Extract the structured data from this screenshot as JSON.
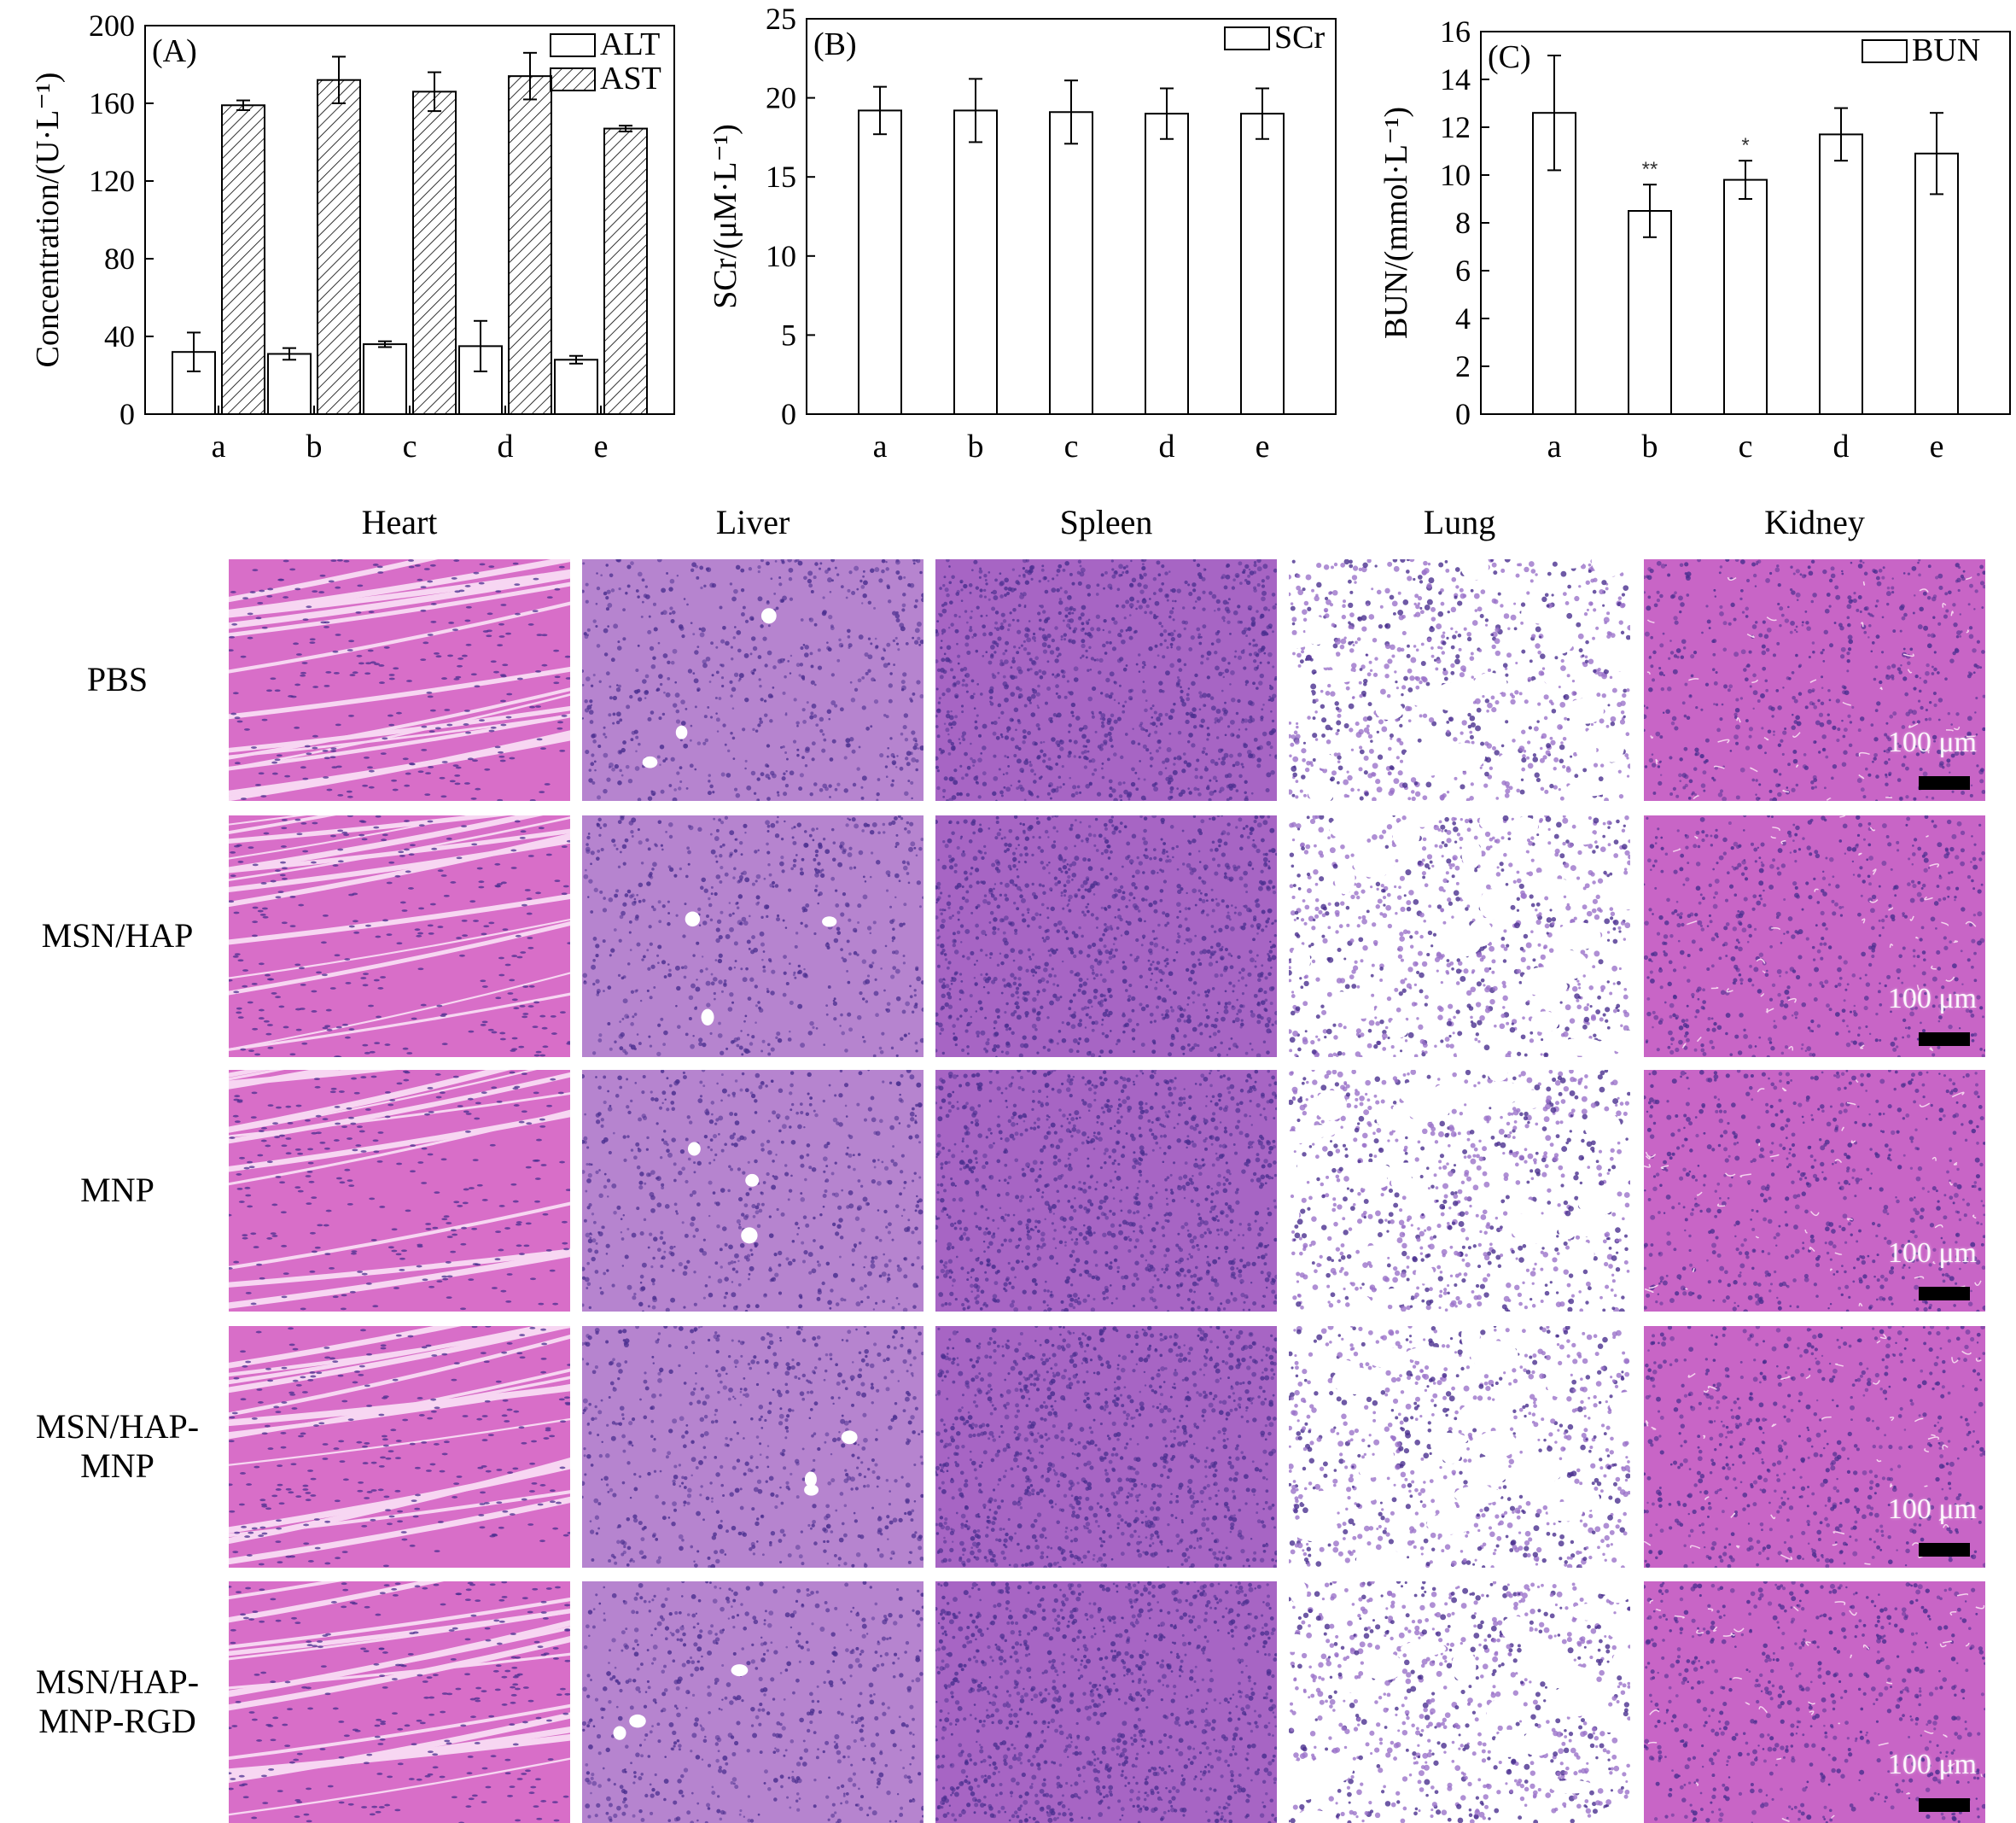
{
  "chart_data": [
    {
      "type": "bar",
      "panel": "(A)",
      "ylabel": "Concentration/(U·L⁻¹)",
      "ylim": [
        0,
        200
      ],
      "yticks": [
        0,
        40,
        80,
        120,
        160,
        200
      ],
      "categories": [
        "a",
        "b",
        "c",
        "d",
        "e"
      ],
      "series": [
        {
          "name": "ALT",
          "pattern": "plain",
          "values": [
            32,
            31,
            36,
            35,
            28
          ],
          "errors": [
            10,
            3,
            1.5,
            13,
            2
          ]
        },
        {
          "name": "AST",
          "pattern": "hatched",
          "values": [
            159,
            172,
            166,
            174,
            147
          ],
          "errors": [
            2.5,
            12,
            10,
            12,
            1.5
          ]
        }
      ],
      "legend_position": "top-right"
    },
    {
      "type": "bar",
      "panel": "(B)",
      "ylabel": "SCr/(μM·L⁻¹)",
      "ylim": [
        0,
        25
      ],
      "yticks": [
        0,
        5,
        10,
        15,
        20,
        25
      ],
      "categories": [
        "a",
        "b",
        "c",
        "d",
        "e"
      ],
      "series": [
        {
          "name": "SCr",
          "pattern": "plain",
          "values": [
            19.2,
            19.2,
            19.1,
            19.0,
            19.0
          ],
          "errors": [
            1.5,
            2.0,
            2.0,
            1.6,
            1.6
          ]
        }
      ],
      "legend_position": "top-right"
    },
    {
      "type": "bar",
      "panel": "(C)",
      "ylabel": "BUN/(mmol·L⁻¹)",
      "ylim": [
        0,
        16
      ],
      "yticks": [
        0,
        2,
        4,
        6,
        8,
        10,
        12,
        14,
        16
      ],
      "categories": [
        "a",
        "b",
        "c",
        "d",
        "e"
      ],
      "series": [
        {
          "name": "BUN",
          "pattern": "plain",
          "values": [
            12.6,
            8.5,
            9.8,
            11.7,
            10.9
          ],
          "errors": [
            2.4,
            1.1,
            0.8,
            1.1,
            1.7
          ]
        }
      ],
      "annotations": [
        "",
        "**",
        "*",
        "",
        ""
      ],
      "legend_position": "top-right"
    }
  ],
  "histology": {
    "columns": [
      "Heart",
      "Liver",
      "Spleen",
      "Lung",
      "Kidney"
    ],
    "rows": [
      "PBS",
      "MSN/HAP",
      "MNP",
      "MSN/HAP-\nMNP",
      "MSN/HAP-\nMNP-RGD"
    ],
    "scale_bar_text": "100 μm",
    "colors": {
      "Heart": "#d86ec8",
      "Liver": "#b684cf",
      "Spleen": "#a765c4",
      "Lung": "#ffffff",
      "Kidney": "#c865c6",
      "nuclei": "#4a2f8f"
    }
  }
}
